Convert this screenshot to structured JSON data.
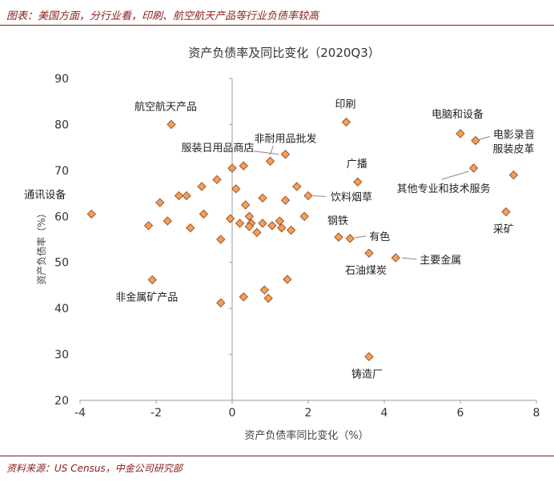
{
  "header": {
    "title": "图表：美国方面，分行业看，印刷、航空航天产品等行业负债率较高"
  },
  "footer": {
    "source": "资料来源：US Census，中金公司研究部"
  },
  "colors": {
    "accent": "#8b1a1a",
    "marker_fill": "#f0a05a",
    "marker_stroke": "#a0522d",
    "axis": "#999999",
    "text": "#333333"
  },
  "chart_data": {
    "type": "scatter",
    "title": "资产负债率及同比变化（2020Q3）",
    "xlabel": "资产负债率同比变化（%）",
    "ylabel": "资产负债率（%）",
    "xlim": [
      -4,
      8
    ],
    "ylim": [
      20,
      90
    ],
    "xticks": [
      -4,
      -2,
      0,
      2,
      4,
      6,
      8
    ],
    "yticks": [
      20,
      30,
      40,
      50,
      60,
      70,
      80,
      90
    ],
    "grid": false,
    "points": [
      {
        "x": -3.7,
        "y": 60.5,
        "label": "通讯设备"
      },
      {
        "x": -1.6,
        "y": 80.0,
        "label": "航空航天产品"
      },
      {
        "x": 3.0,
        "y": 80.5,
        "label": "印刷"
      },
      {
        "x": 6.0,
        "y": 78.0,
        "label": "电脑和设备"
      },
      {
        "x": 6.4,
        "y": 76.5,
        "label": "电影录音"
      },
      {
        "x": 1.0,
        "y": 72.0,
        "label": "非耐用品批发"
      },
      {
        "x": 1.4,
        "y": 73.5,
        "label": "服装日用品商店"
      },
      {
        "x": 3.3,
        "y": 67.5,
        "label": "广播"
      },
      {
        "x": 7.4,
        "y": 69.0,
        "label": "服装皮革"
      },
      {
        "x": 6.35,
        "y": 70.5,
        "label": "其他专业和技术服务"
      },
      {
        "x": 2.0,
        "y": 64.5,
        "label": "饮料烟草"
      },
      {
        "x": 7.2,
        "y": 61.0,
        "label": "采矿"
      },
      {
        "x": 2.8,
        "y": 55.5,
        "label": "钢铁"
      },
      {
        "x": 3.1,
        "y": 55.2,
        "label": "有色"
      },
      {
        "x": 4.3,
        "y": 51.0,
        "label": "主要金属"
      },
      {
        "x": 3.6,
        "y": 52.0,
        "label": "石油煤炭"
      },
      {
        "x": -2.1,
        "y": 46.2,
        "label": "非金属矿产品"
      },
      {
        "x": 3.6,
        "y": 29.5,
        "label": "铸造厂"
      },
      {
        "x": -2.2,
        "y": 58.0
      },
      {
        "x": -1.9,
        "y": 63.0
      },
      {
        "x": -1.7,
        "y": 59.0
      },
      {
        "x": -1.4,
        "y": 64.5
      },
      {
        "x": -1.2,
        "y": 64.5
      },
      {
        "x": -1.1,
        "y": 57.5
      },
      {
        "x": -0.8,
        "y": 66.5
      },
      {
        "x": -0.75,
        "y": 60.5
      },
      {
        "x": -0.4,
        "y": 68.0
      },
      {
        "x": -0.3,
        "y": 55.0
      },
      {
        "x": -0.3,
        "y": 41.2
      },
      {
        "x": 0.0,
        "y": 70.5
      },
      {
        "x": -0.05,
        "y": 59.5
      },
      {
        "x": 0.1,
        "y": 66.0
      },
      {
        "x": 0.2,
        "y": 58.5
      },
      {
        "x": 0.3,
        "y": 71.0
      },
      {
        "x": 0.35,
        "y": 62.5
      },
      {
        "x": 0.3,
        "y": 42.5
      },
      {
        "x": 0.45,
        "y": 60.0
      },
      {
        "x": 0.5,
        "y": 58.5
      },
      {
        "x": 0.45,
        "y": 57.8
      },
      {
        "x": 0.65,
        "y": 56.5
      },
      {
        "x": 0.8,
        "y": 64.0
      },
      {
        "x": 0.8,
        "y": 58.5
      },
      {
        "x": 0.85,
        "y": 44.0
      },
      {
        "x": 0.95,
        "y": 42.2
      },
      {
        "x": 1.05,
        "y": 58.0
      },
      {
        "x": 1.25,
        "y": 59.0
      },
      {
        "x": 1.3,
        "y": 57.5
      },
      {
        "x": 1.4,
        "y": 63.5
      },
      {
        "x": 1.45,
        "y": 46.3
      },
      {
        "x": 1.55,
        "y": 57.0
      },
      {
        "x": 1.7,
        "y": 66.5
      },
      {
        "x": 1.9,
        "y": 60.0
      }
    ]
  }
}
